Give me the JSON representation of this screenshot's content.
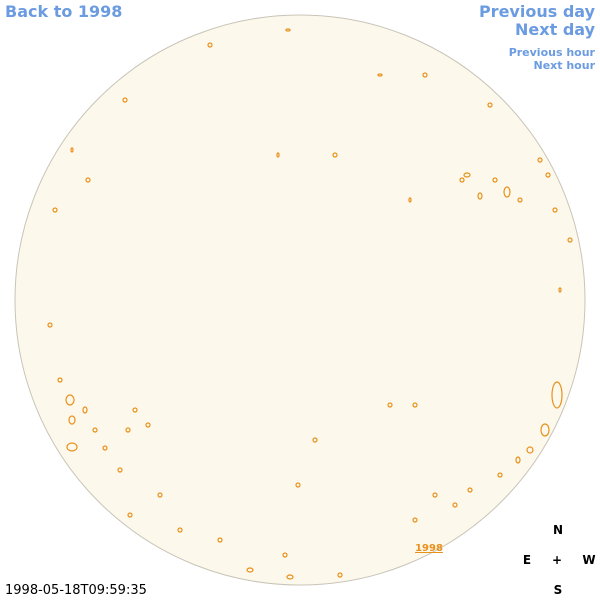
{
  "navigation": {
    "back": "Back to 1998",
    "previous_day": "Previous day",
    "next_day": "Next day",
    "previous_hour": "Previous hour",
    "next_hour": "Next hour"
  },
  "image": {
    "year_label": "1998"
  },
  "timestamp": "1998-05-18T09:59:35",
  "compass": {
    "north": "N",
    "east": "E",
    "center": "+",
    "west": "W",
    "south": "S"
  }
}
